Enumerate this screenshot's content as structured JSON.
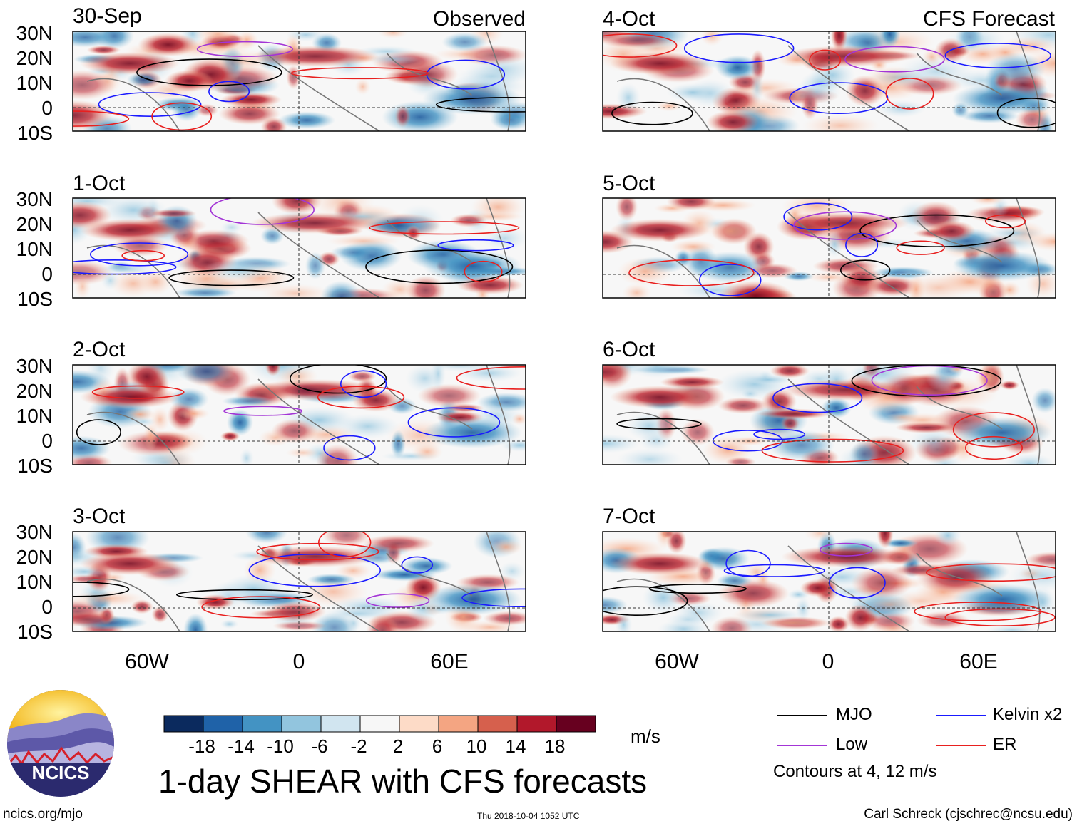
{
  "panels": [
    {
      "date": "30-Sep",
      "label": "Observed",
      "ylabels": [
        "30N",
        "20N",
        "10N",
        "0",
        "10S"
      ]
    },
    {
      "date": "1-Oct",
      "label": "",
      "ylabels": [
        "30N",
        "20N",
        "10N",
        "0",
        "10S"
      ]
    },
    {
      "date": "2-Oct",
      "label": "",
      "ylabels": [
        "30N",
        "20N",
        "10N",
        "0",
        "10S"
      ]
    },
    {
      "date": "3-Oct",
      "label": "",
      "ylabels": [
        "30N",
        "20N",
        "10N",
        "0",
        "10S"
      ]
    },
    {
      "date": "4-Oct",
      "label": "CFS Forecast"
    },
    {
      "date": "5-Oct",
      "label": ""
    },
    {
      "date": "6-Oct",
      "label": ""
    },
    {
      "date": "7-Oct",
      "label": ""
    }
  ],
  "xaxis": {
    "left": [
      "60W",
      "0",
      "60E"
    ],
    "right": [
      "60W",
      "0",
      "60E"
    ]
  },
  "colorbar": {
    "colors": [
      "#0b2a5e",
      "#1f62a8",
      "#4393c3",
      "#92c5de",
      "#d1e5f0",
      "#f7f7f7",
      "#fddbc7",
      "#f4a582",
      "#d6604d",
      "#b2182b",
      "#67001f"
    ],
    "labels": [
      "-18",
      "-14",
      "-10",
      "-6",
      "-2",
      "2",
      "6",
      "10",
      "14",
      "18"
    ],
    "unit": "m/s"
  },
  "legend": {
    "items": [
      {
        "name": "MJO",
        "color": "#000000"
      },
      {
        "name": "Kelvin x2",
        "color": "#1a1aff"
      },
      {
        "name": "Low",
        "color": "#a335d6"
      },
      {
        "name": "ER",
        "color": "#e8201f"
      }
    ],
    "note": "Contours at 4, 12 m/s"
  },
  "title": "1-day SHEAR with CFS forecasts",
  "logo_text": "NCICS",
  "footer": {
    "url": "ncics.org/mjo",
    "timestamp": "Thu 2018-10-04 1052 UTC",
    "author": "Carl Schreck (cjschrec@ncsu.edu)"
  }
}
